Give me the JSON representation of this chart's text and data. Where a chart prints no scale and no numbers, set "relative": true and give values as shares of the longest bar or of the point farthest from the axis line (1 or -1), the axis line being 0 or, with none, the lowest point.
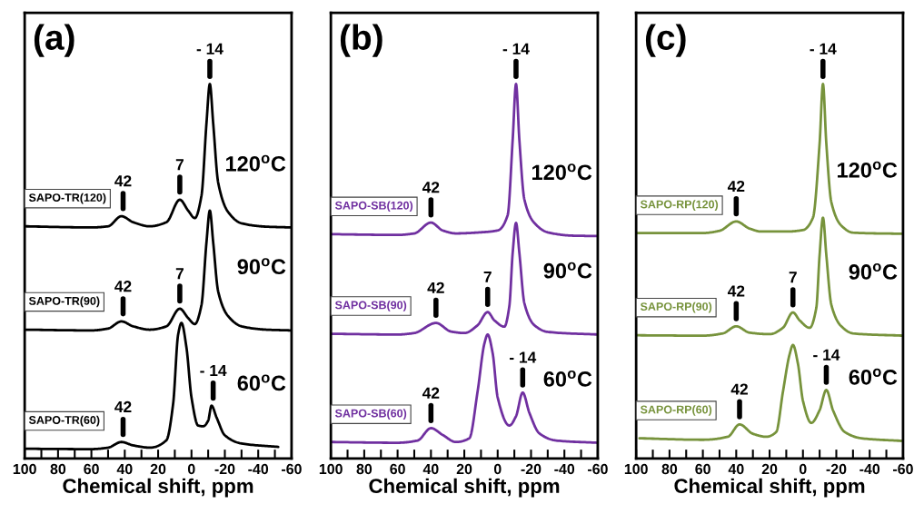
{
  "chart_data": [
    {
      "type": "line",
      "relative": true,
      "legend": "left",
      "title": "(a)",
      "xlabel": "Chemical shift, ppm",
      "tick_labels": "x",
      "xlim": [
        100,
        -60
      ],
      "xticks": [
        100,
        {
          "value": 90,
          "label": null
        },
        80,
        {
          "value": 70,
          "label": null
        },
        60,
        {
          "value": 50,
          "label": null
        },
        40,
        {
          "value": 30,
          "label": null
        },
        20,
        {
          "value": 10,
          "label": null
        },
        0,
        {
          "value": -10,
          "label": null
        },
        -20,
        {
          "value": -30,
          "label": null
        },
        -40,
        {
          "value": -50,
          "label": null
        },
        -60
      ],
      "series": [
        {
          "name": "SAPO-TR(120)",
          "color": "#000000",
          "x": [
            100,
            60,
            50,
            42,
            35,
            25,
            15,
            7,
            2,
            -2,
            -6,
            -9,
            -11,
            -13,
            -16,
            -22,
            -30,
            -45,
            -60
          ],
          "values": [
            0.62,
            0.617,
            0.62,
            0.647,
            0.631,
            0.62,
            0.631,
            0.691,
            0.662,
            0.642,
            0.702,
            0.896,
            1.0,
            0.896,
            0.737,
            0.658,
            0.628,
            0.619,
            0.617
          ]
        },
        {
          "name": "SAPO-TR(90)",
          "color": "#000000",
          "x": [
            100,
            60,
            50,
            42,
            35,
            25,
            15,
            7,
            2,
            -2,
            -6,
            -9,
            -11,
            -13,
            -16,
            -22,
            -30,
            -45,
            -60
          ],
          "values": [
            0.344,
            0.342,
            0.347,
            0.366,
            0.353,
            0.344,
            0.353,
            0.4,
            0.375,
            0.359,
            0.41,
            0.578,
            0.662,
            0.578,
            0.446,
            0.38,
            0.353,
            0.344,
            0.342
          ]
        },
        {
          "name": "SAPO-TR(60)",
          "color": "#000000",
          "x": [
            100,
            60,
            50,
            42,
            35,
            25,
            15,
            11,
            8,
            6,
            3,
            0,
            -4,
            -7,
            -10,
            -12,
            -15,
            -20,
            -30,
            -52
          ],
          "values": [
            0.026,
            0.025,
            0.029,
            0.044,
            0.035,
            0.029,
            0.049,
            0.146,
            0.331,
            0.362,
            0.296,
            0.163,
            0.088,
            0.086,
            0.101,
            0.141,
            0.11,
            0.062,
            0.04,
            0.031
          ]
        }
      ],
      "annotations": [
        "120$^{o}$C",
        "90$^{o}$C",
        "60$^{o}$C",
        {
          "text": "42",
          "x": 41,
          "y": 0.647
        },
        {
          "text": "7",
          "x": 7,
          "y": 0.691
        },
        {
          "text": "- 14",
          "x": -11,
          "y": 1.0
        },
        {
          "text": "42",
          "x": 41,
          "y": 0.366
        },
        {
          "text": "7",
          "x": 7,
          "y": 0.4
        },
        {
          "text": "42",
          "x": 41,
          "y": 0.044
        },
        {
          "text": "- 14",
          "x": -13,
          "y": 0.141
        }
      ]
    },
    {
      "type": "line",
      "relative": true,
      "legend": "left",
      "title": "(b)",
      "xlabel": "Chemical shift, ppm",
      "tick_labels": "x",
      "xlim": [
        100,
        -60
      ],
      "xticks": [
        100,
        {
          "value": 90,
          "label": null
        },
        80,
        {
          "value": 70,
          "label": null
        },
        60,
        {
          "value": 50,
          "label": null
        },
        40,
        {
          "value": 30,
          "label": null
        },
        20,
        {
          "value": 10,
          "label": null
        },
        0,
        {
          "value": -10,
          "label": null
        },
        -20,
        {
          "value": -30,
          "label": null
        },
        -40,
        {
          "value": -50,
          "label": null
        },
        -60
      ],
      "series": [
        {
          "name": "SAPO-SB(120)",
          "color": "#7030a0",
          "x": [
            100,
            60,
            50,
            40,
            33,
            25,
            10,
            0,
            -6,
            -9,
            -11,
            -13,
            -16,
            -22,
            -30,
            -45,
            -60
          ],
          "values": [
            0.599,
            0.597,
            0.601,
            0.63,
            0.609,
            0.601,
            0.604,
            0.609,
            0.65,
            0.851,
            1.0,
            0.851,
            0.692,
            0.629,
            0.604,
            0.595,
            0.594
          ]
        },
        {
          "name": "SAPO-SB(90)",
          "color": "#7030a0",
          "x": [
            100,
            60,
            50,
            37,
            28,
            20,
            12,
            6,
            2,
            -4,
            -7,
            -9,
            -11,
            -13,
            -16,
            -22,
            -30,
            -60
          ],
          "values": [
            0.333,
            0.331,
            0.335,
            0.362,
            0.339,
            0.335,
            0.356,
            0.391,
            0.369,
            0.352,
            0.407,
            0.549,
            0.629,
            0.549,
            0.415,
            0.356,
            0.338,
            0.331
          ]
        },
        {
          "name": "SAPO-SB(60)",
          "color": "#7030a0",
          "x": [
            100,
            60,
            48,
            40,
            33,
            25,
            17,
            12,
            8,
            6,
            3,
            0,
            -7,
            -11,
            -15,
            -19,
            -25,
            -35,
            -60
          ],
          "values": [
            0.044,
            0.042,
            0.048,
            0.081,
            0.063,
            0.044,
            0.054,
            0.18,
            0.306,
            0.331,
            0.281,
            0.163,
            0.088,
            0.113,
            0.176,
            0.122,
            0.067,
            0.048,
            0.042
          ]
        }
      ],
      "annotations": [
        "120$^{o}$C",
        "90$^{o}$C",
        "60$^{o}$C",
        {
          "text": "- 14",
          "x": -11,
          "y": 1.0
        },
        {
          "text": "42",
          "x": 40,
          "y": 0.63
        },
        {
          "text": "42",
          "x": 37,
          "y": 0.362
        },
        {
          "text": "7",
          "x": 6,
          "y": 0.391
        },
        {
          "text": "42",
          "x": 40,
          "y": 0.081
        },
        {
          "text": "- 14",
          "x": -15,
          "y": 0.176
        }
      ]
    },
    {
      "type": "line",
      "relative": true,
      "legend": "left",
      "title": "(c)",
      "xlabel": "Chemical shift, ppm",
      "tick_labels": "x",
      "xlim": [
        100,
        -60
      ],
      "xticks": [
        100,
        {
          "value": 90,
          "label": null
        },
        80,
        {
          "value": 70,
          "label": null
        },
        60,
        {
          "value": 50,
          "label": null
        },
        40,
        {
          "value": 30,
          "label": null
        },
        20,
        {
          "value": 10,
          "label": null
        },
        0,
        {
          "value": -10,
          "label": null
        },
        -20,
        {
          "value": -30,
          "label": null
        },
        -40,
        {
          "value": -50,
          "label": null
        },
        -60
      ],
      "series": [
        {
          "name": "SAPO-RP(120)",
          "color": "#77933c",
          "x": [
            100,
            60,
            50,
            40,
            32,
            25,
            10,
            0,
            -6,
            -10,
            -12,
            -14,
            -17,
            -23,
            -30,
            -60
          ],
          "values": [
            0.602,
            0.602,
            0.608,
            0.633,
            0.614,
            0.606,
            0.606,
            0.61,
            0.643,
            0.842,
            1.0,
            0.842,
            0.685,
            0.622,
            0.603,
            0.6
          ]
        },
        {
          "name": "SAPO-RP(90)",
          "color": "#77933c",
          "x": [
            100,
            60,
            48,
            40,
            32,
            20,
            12,
            6,
            2,
            -4,
            -8,
            -10,
            -12,
            -14,
            -17,
            -23,
            -30,
            -60
          ],
          "values": [
            0.329,
            0.328,
            0.334,
            0.353,
            0.336,
            0.332,
            0.349,
            0.39,
            0.369,
            0.349,
            0.402,
            0.544,
            0.643,
            0.544,
            0.411,
            0.353,
            0.334,
            0.328
          ]
        },
        {
          "name": "SAPO-RP(60)",
          "color": "#77933c",
          "x": [
            98,
            60,
            45,
            38,
            30,
            22,
            16,
            12,
            8,
            6,
            3,
            0,
            -5,
            -10,
            -14,
            -18,
            -25,
            -35,
            -59
          ],
          "values": [
            0.054,
            0.05,
            0.058,
            0.091,
            0.066,
            0.058,
            0.071,
            0.178,
            0.278,
            0.303,
            0.253,
            0.154,
            0.095,
            0.129,
            0.183,
            0.129,
            0.071,
            0.054,
            0.047
          ]
        }
      ],
      "annotations": [
        "120$^{o}$C",
        "90$^{o}$C",
        "60$^{o}$C",
        {
          "text": "- 14",
          "x": -12,
          "y": 1.0
        },
        {
          "text": "42",
          "x": 40,
          "y": 0.633
        },
        {
          "text": "42",
          "x": 40,
          "y": 0.353
        },
        {
          "text": "7",
          "x": 6,
          "y": 0.39
        },
        {
          "text": "42",
          "x": 38,
          "y": 0.091
        },
        {
          "text": "- 14",
          "x": -14,
          "y": 0.183
        }
      ]
    }
  ]
}
